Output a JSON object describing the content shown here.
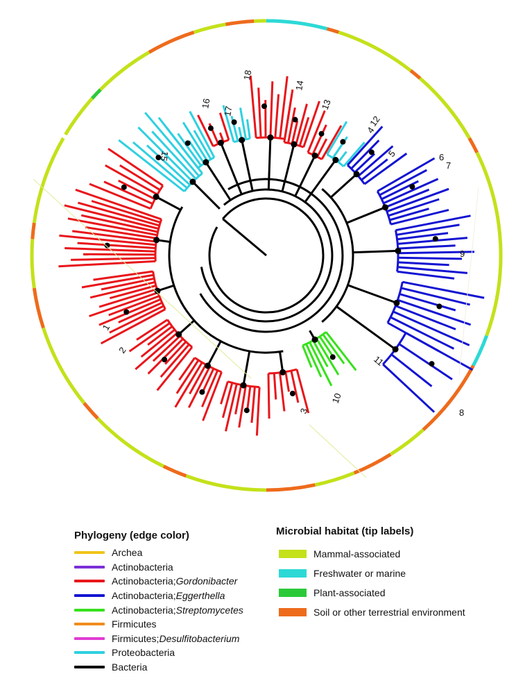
{
  "tree": {
    "clade_labels": [
      "1",
      "2",
      "3",
      "4",
      "5",
      "6",
      "7",
      "8",
      "9",
      "10",
      "11",
      "12",
      "13",
      "14",
      "15",
      "16",
      "17",
      "18"
    ]
  },
  "legend": {
    "phylogeny": {
      "title": "Phylogeny (edge color)",
      "items": [
        {
          "name": "Archea",
          "color": "#f0c419"
        },
        {
          "name": "Actinobacteria",
          "color": "#7b2fd6"
        },
        {
          "name": "Actinobacteria; ",
          "italic": "Gordonibacter",
          "color": "#e8161b"
        },
        {
          "name": "Actinobacteria; ",
          "italic": "Eggerthella",
          "color": "#1414d2"
        },
        {
          "name": "Actinobacteria; ",
          "italic": "Streptomycetes",
          "color": "#37e11c"
        },
        {
          "name": "Firmicutes",
          "color": "#f08c1e"
        },
        {
          "name": "Firmicutes; ",
          "italic": "Desulfitobacterium",
          "color": "#e03cd2"
        },
        {
          "name": "Proteobacteria",
          "color": "#2fd0e0"
        },
        {
          "name": "Bacteria",
          "color": "#000000"
        }
      ]
    },
    "habitat": {
      "title": "Microbial habitat (tip labels)",
      "items": [
        {
          "name": "Mammal-associated",
          "color": "#c4e11a"
        },
        {
          "name": "Freshwater or marine",
          "color": "#2dd9d6"
        },
        {
          "name": "Plant-associated",
          "color": "#2bc93a"
        },
        {
          "name": "Soil or other terrestrial environment",
          "color": "#ee6b1c"
        }
      ]
    }
  }
}
